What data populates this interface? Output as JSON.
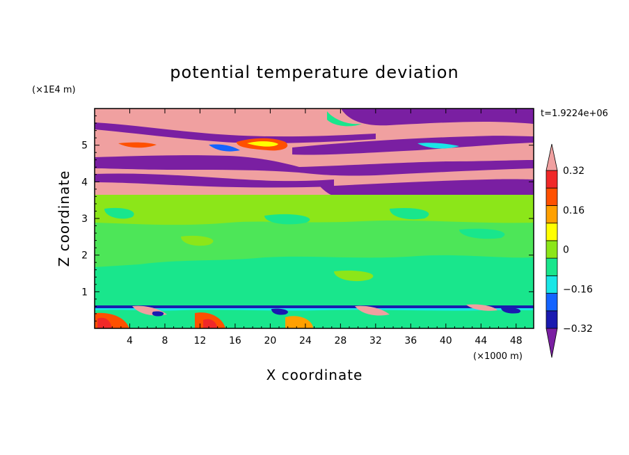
{
  "chart_data": {
    "type": "heatmap",
    "title": "potential temperature deviation",
    "xlabel": "X coordinate",
    "ylabel": "Z coordinate",
    "x_unit": "(×1000 m)",
    "y_unit": "(×1E4 m)",
    "time_label": "t=1.9224e+06",
    "xlim": [
      0,
      50
    ],
    "ylim": [
      0,
      6
    ],
    "x_ticks": [
      4,
      8,
      12,
      16,
      20,
      24,
      28,
      32,
      36,
      40,
      44,
      48
    ],
    "x_tick_labels": [
      "4",
      "8",
      "12",
      "16",
      "20",
      "24",
      "28",
      "32",
      "36",
      "40",
      "44",
      "48"
    ],
    "y_ticks": [
      1,
      2,
      3,
      4,
      5
    ],
    "y_tick_labels": [
      "1",
      "2",
      "3",
      "4",
      "5"
    ],
    "colorbar": {
      "levels": [
        -0.4,
        -0.32,
        -0.24,
        -0.16,
        -0.08,
        0,
        0.08,
        0.16,
        0.24,
        0.32,
        0.4
      ],
      "tick_values": [
        0.32,
        0.16,
        0,
        -0.16,
        -0.32
      ],
      "tick_labels": [
        "0.32",
        "0.16",
        "0",
        "−0.16",
        "−0.32"
      ],
      "colors": [
        "#7a1fa2",
        "#1a1ab0",
        "#1464ff",
        "#19e6e6",
        "#19e68c",
        "#8ce619",
        "#ffff00",
        "#ffa000",
        "#ff5000",
        "#f02828",
        "#f0a0a0"
      ],
      "extend": "both"
    },
    "regions": [
      {
        "feature": "upper layer",
        "z_range": [
          3.7,
          6.0
        ],
        "dominant": "alternating ±0.4 bands"
      },
      {
        "feature": "mid layer",
        "z_range": [
          0.6,
          3.7
        ],
        "dominant": "0 to 0.08"
      },
      {
        "feature": "lowest layer",
        "z_range": [
          0,
          0.6
        ],
        "dominant": "-0.16 to 0.4"
      }
    ]
  }
}
